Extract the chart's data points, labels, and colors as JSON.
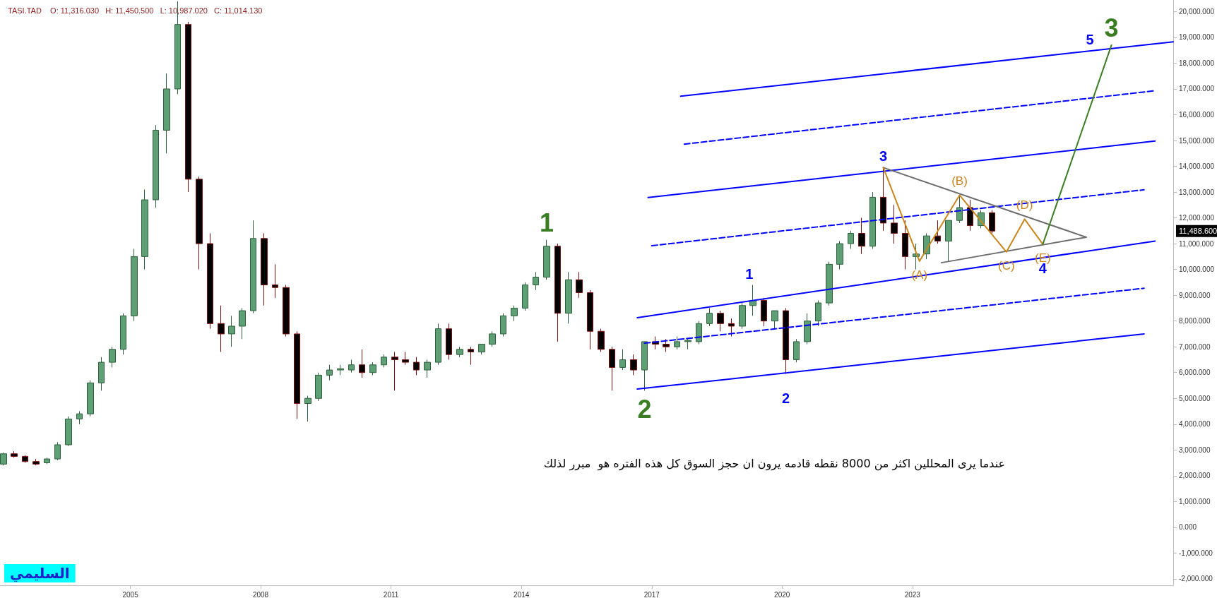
{
  "chart_data": {
    "type": "candlestick",
    "title": "TASI.TAD    O: 11,316.030   H: 11,450.500   L: 10,987.020   C: 11,014.130",
    "x": [
      "2002-02",
      "2002-05",
      "2002-08",
      "2002-11",
      "2003-02",
      "2003-05",
      "2003-08",
      "2003-11",
      "2004-02",
      "2004-05",
      "2004-08",
      "2004-11",
      "2005-02",
      "2005-05",
      "2005-08",
      "2005-11",
      "2006-02",
      "2006-05",
      "2006-08",
      "2006-11",
      "2007-02",
      "2007-05",
      "2007-08",
      "2007-11",
      "2008-02",
      "2008-05",
      "2008-08",
      "2008-11",
      "2009-02",
      "2009-05",
      "2009-08",
      "2009-11",
      "2010-02",
      "2010-05",
      "2010-08",
      "2010-11",
      "2011-02",
      "2011-05",
      "2011-08",
      "2011-11",
      "2012-02",
      "2012-05",
      "2012-08",
      "2012-11",
      "2013-02",
      "2013-05",
      "2013-08",
      "2013-11",
      "2014-02",
      "2014-05",
      "2014-08",
      "2014-11",
      "2015-02",
      "2015-05",
      "2015-08",
      "2015-11",
      "2016-02",
      "2016-05",
      "2016-08",
      "2016-11",
      "2017-02",
      "2017-05",
      "2017-08",
      "2017-11",
      "2018-02",
      "2018-05",
      "2018-08",
      "2018-11",
      "2019-02",
      "2019-05",
      "2019-08",
      "2019-11",
      "2020-02",
      "2020-05",
      "2020-08",
      "2020-11",
      "2021-02",
      "2021-05",
      "2021-08",
      "2021-11",
      "2022-02",
      "2022-05",
      "2022-08",
      "2022-11",
      "2023-02",
      "2023-05",
      "2023-08",
      "2023-11",
      "2024-02",
      "2024-05",
      "2024-08",
      "2024-11"
    ],
    "ohlc": [
      [
        2450,
        2900,
        2400,
        2850
      ],
      [
        2850,
        2950,
        2700,
        2750
      ],
      [
        2750,
        2800,
        2500,
        2550
      ],
      [
        2550,
        2650,
        2400,
        2450
      ],
      [
        2500,
        2700,
        2450,
        2650
      ],
      [
        2650,
        3300,
        2600,
        3200
      ],
      [
        3200,
        4300,
        3150,
        4200
      ],
      [
        4200,
        4500,
        4000,
        4400
      ],
      [
        4400,
        5700,
        4300,
        5600
      ],
      [
        5600,
        6600,
        5300,
        6400
      ],
      [
        6400,
        7000,
        6200,
        6900
      ],
      [
        6900,
        8300,
        6700,
        8200
      ],
      [
        8200,
        10800,
        8000,
        10500
      ],
      [
        10500,
        13100,
        10000,
        12700
      ],
      [
        12700,
        15600,
        12400,
        15400
      ],
      [
        15400,
        17600,
        14500,
        17000
      ],
      [
        17000,
        20400,
        16800,
        19500
      ],
      [
        19500,
        19600,
        13000,
        13500
      ],
      [
        13500,
        13600,
        10000,
        11000
      ],
      [
        11000,
        11400,
        7700,
        7900
      ],
      [
        7900,
        8600,
        6800,
        7500
      ],
      [
        7500,
        8200,
        7000,
        7800
      ],
      [
        7800,
        8500,
        7300,
        8400
      ],
      [
        8400,
        11900,
        8300,
        11200
      ],
      [
        11200,
        11400,
        8600,
        9400
      ],
      [
        9400,
        10200,
        8900,
        9300
      ],
      [
        9300,
        9400,
        7400,
        7500
      ],
      [
        7500,
        7600,
        4200,
        4800
      ],
      [
        4800,
        5100,
        4100,
        5000
      ],
      [
        5000,
        6000,
        4900,
        5900
      ],
      [
        5900,
        6300,
        5700,
        6100
      ],
      [
        6100,
        6300,
        5900,
        6150
      ],
      [
        6100,
        6500,
        6000,
        6300
      ],
      [
        6300,
        6900,
        5800,
        6000
      ],
      [
        6000,
        6400,
        5900,
        6300
      ],
      [
        6300,
        6700,
        6200,
        6600
      ],
      [
        6600,
        6800,
        5300,
        6500
      ],
      [
        6500,
        6800,
        6300,
        6400
      ],
      [
        6400,
        6600,
        5900,
        6100
      ],
      [
        6100,
        6500,
        5800,
        6400
      ],
      [
        6400,
        7900,
        6300,
        7700
      ],
      [
        7700,
        7900,
        6500,
        6700
      ],
      [
        6700,
        7000,
        6600,
        6900
      ],
      [
        6900,
        7000,
        6300,
        6800
      ],
      [
        6800,
        7100,
        6700,
        7100
      ],
      [
        7100,
        7600,
        7000,
        7500
      ],
      [
        7500,
        8300,
        7400,
        8200
      ],
      [
        8200,
        8600,
        8000,
        8500
      ],
      [
        8500,
        9500,
        8400,
        9400
      ],
      [
        9400,
        9900,
        9200,
        9700
      ],
      [
        9700,
        11150,
        9600,
        10900
      ],
      [
        10900,
        11000,
        7200,
        8300
      ],
      [
        8300,
        9900,
        7900,
        9600
      ],
      [
        9600,
        9900,
        8900,
        9100
      ],
      [
        9100,
        9200,
        6900,
        7600
      ],
      [
        7600,
        7700,
        6800,
        6900
      ],
      [
        6900,
        7000,
        5300,
        6200
      ],
      [
        6200,
        6900,
        6100,
        6500
      ],
      [
        6500,
        6700,
        5900,
        6100
      ],
      [
        6100,
        7200,
        5300,
        7200
      ],
      [
        7200,
        7400,
        6900,
        7100
      ],
      [
        7100,
        7300,
        6800,
        7000
      ],
      [
        7000,
        7400,
        6900,
        7200
      ],
      [
        7200,
        7300,
        6900,
        7250
      ],
      [
        7200,
        8000,
        7100,
        7900
      ],
      [
        7900,
        8500,
        7800,
        8300
      ],
      [
        8300,
        8400,
        7600,
        7900
      ],
      [
        7900,
        8100,
        7400,
        7800
      ],
      [
        7800,
        8700,
        7700,
        8600
      ],
      [
        8600,
        9400,
        8200,
        8800
      ],
      [
        8800,
        8900,
        7800,
        8000
      ],
      [
        8000,
        8400,
        7700,
        8400
      ],
      [
        8400,
        8500,
        5950,
        6500
      ],
      [
        6500,
        7300,
        6400,
        7200
      ],
      [
        7200,
        8300,
        7100,
        8000
      ],
      [
        8000,
        8800,
        7800,
        8700
      ],
      [
        8700,
        10300,
        8600,
        10200
      ],
      [
        10200,
        11100,
        10000,
        11000
      ],
      [
        11000,
        11500,
        10800,
        11400
      ],
      [
        11400,
        12000,
        10600,
        10900
      ],
      [
        10900,
        13000,
        10800,
        12800
      ],
      [
        12800,
        13950,
        11500,
        11800
      ],
      [
        11800,
        12500,
        11000,
        11400
      ],
      [
        11400,
        11900,
        10000,
        10500
      ],
      [
        10500,
        11000,
        10000,
        10600
      ],
      [
        10600,
        11400,
        10400,
        11300
      ],
      [
        11300,
        11900,
        11000,
        11100
      ],
      [
        11100,
        11900,
        10300,
        11900
      ],
      [
        11900,
        12900,
        11800,
        12400
      ],
      [
        12400,
        12700,
        11500,
        11700
      ],
      [
        11700,
        12300,
        11600,
        12200
      ],
      [
        12200,
        12300,
        11400,
        11488.6
      ]
    ],
    "xlim": [
      "2002-01",
      "2029-01"
    ],
    "xticks": [
      "2005",
      "2008",
      "2011",
      "2014",
      "2017",
      "2020",
      "2023"
    ],
    "ylim": [
      -2250,
      20450
    ],
    "yticks": [
      {
        "value": -2000,
        "label": "-2,000.000"
      },
      {
        "value": -1000,
        "label": "-1,000.000"
      },
      {
        "value": 0,
        "label": "0.000"
      },
      {
        "value": 1000,
        "label": "1,000.000"
      },
      {
        "value": 2000,
        "label": "2,000.000"
      },
      {
        "value": 3000,
        "label": "3,000.000"
      },
      {
        "value": 4000,
        "label": "4,000.000"
      },
      {
        "value": 5000,
        "label": "5,000.000"
      },
      {
        "value": 6000,
        "label": "6,000.000"
      },
      {
        "value": 7000,
        "label": "7,000.000"
      },
      {
        "value": 8000,
        "label": "8,000.000"
      },
      {
        "value": 9000,
        "label": "9,000.000"
      },
      {
        "value": 10000,
        "label": "10,000.000"
      },
      {
        "value": 11000,
        "label": "11,000.000"
      },
      {
        "value": 12000,
        "label": "12,000.000"
      },
      {
        "value": 13000,
        "label": "13,000.000"
      },
      {
        "value": 14000,
        "label": "14,000.000"
      },
      {
        "value": 15000,
        "label": "15,000.000"
      },
      {
        "value": 16000,
        "label": "16,000.000"
      },
      {
        "value": 17000,
        "label": "17,000.000"
      },
      {
        "value": 18000,
        "label": "18,000.000"
      },
      {
        "value": 19000,
        "label": "19,000.000"
      },
      {
        "value": 20000,
        "label": "20,000.000"
      }
    ],
    "series": [
      {
        "type": "line",
        "color": "#0000ff",
        "line_style": "solid",
        "x": [
          "2016-09",
          "2028-05"
        ],
        "values": [
          5360,
          7500
        ]
      },
      {
        "type": "line",
        "color": "#0000ff",
        "line_style": "dashed",
        "x": [
          "2016-11",
          "2028-05"
        ],
        "values": [
          7140,
          9270
        ]
      },
      {
        "type": "line",
        "color": "#0000ff",
        "line_style": "solid",
        "x": [
          "2016-09",
          "2028-08"
        ],
        "values": [
          8130,
          11100
        ]
      },
      {
        "type": "line",
        "color": "#0000ff",
        "line_style": "dashed",
        "x": [
          "2017-01",
          "2028-05"
        ],
        "values": [
          10920,
          13090
        ]
      },
      {
        "type": "line",
        "color": "#0000ff",
        "line_style": "solid",
        "x": [
          "2016-12",
          "2028-08"
        ],
        "values": [
          12790,
          14980
        ]
      },
      {
        "type": "line",
        "color": "#0000ff",
        "line_style": "dashed",
        "x": [
          "2017-10",
          "2028-08"
        ],
        "values": [
          14860,
          16930
        ]
      },
      {
        "type": "line",
        "color": "#0000ff",
        "line_style": "solid",
        "x": [
          "2017-09",
          "2029-01"
        ],
        "values": [
          16720,
          18830
        ]
      },
      {
        "type": "line",
        "color": "#6e6e6e",
        "line_style": "solid",
        "x": [
          "2022-05",
          "2027-01"
        ],
        "values": [
          13950,
          11250
        ]
      },
      {
        "type": "line",
        "color": "#6e6e6e",
        "line_style": "solid",
        "x": [
          "2023-09",
          "2027-01"
        ],
        "values": [
          10260,
          11250
        ]
      },
      {
        "type": "line",
        "color": "#c8861e",
        "line_style": "solid",
        "x": [
          "2022-05",
          "2023-03",
          "2024-02",
          "2025-03",
          "2025-08",
          "2026-01"
        ],
        "values": [
          13950,
          10320,
          12880,
          10680,
          11950,
          10980
        ],
        "value_labels": [
          null,
          "(A)",
          "(B)",
          "(C)",
          "(D)",
          "(E)"
        ]
      },
      {
        "type": "line",
        "color": "#3a7d22",
        "line_style": "solid",
        "x": [
          "2026-01",
          "2027-08"
        ],
        "values": [
          10980,
          18700
        ]
      }
    ],
    "annotations": [
      "عندما يرى المحللين اكثر من 8000 نقطه قادمه يرون ان حجز السوق كل هذه الفتره هو  مبرر لذلك",
      "السليمي",
      "11,488.600",
      {
        "text": "1",
        "x": "2019-04",
        "y": 9400
      },
      {
        "text": "2",
        "x": "2020-02",
        "y": 5950
      },
      {
        "text": "3",
        "x": "2022-05",
        "y": 13950
      },
      {
        "text": "4",
        "x": "2026-01",
        "y": 10980
      },
      {
        "text": "5",
        "x": "2027-02",
        "y": 18470
      },
      {
        "text": "1",
        "x": "2014-08",
        "y": 11150
      },
      {
        "text": "2",
        "x": "2016-11",
        "y": 5300
      },
      {
        "text": "3",
        "x": "2027-08",
        "y": 18700
      }
    ]
  }
}
